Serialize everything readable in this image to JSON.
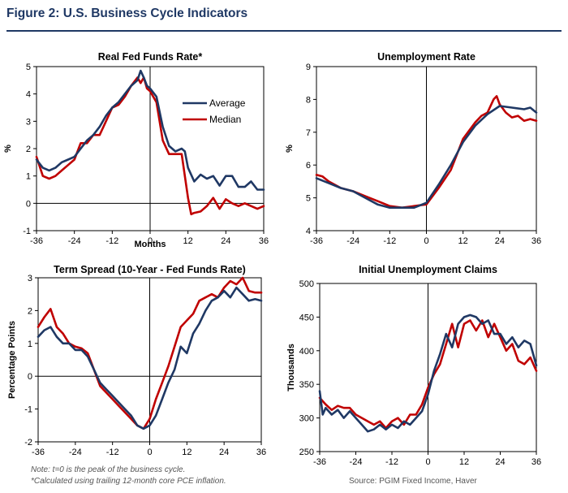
{
  "figure": {
    "title": "Figure 2: U.S. Business Cycle Indicators",
    "note1": "Note: t=0 is the peak of the business cycle.",
    "note2": "*Calculated using trailing 12-month core PCE inflation.",
    "source": "Source: PGIM Fixed Income, Haver",
    "colors": {
      "average": "#1f3864",
      "median": "#c00000",
      "title": "#1f3864"
    }
  },
  "chart_data": [
    {
      "type": "line",
      "title": "Real Fed Funds Rate*",
      "xlabel": "Months",
      "ylabel": "%",
      "xlim": [
        -36,
        36
      ],
      "ylim": [
        -1,
        5
      ],
      "xticks": [
        -36,
        -24,
        -12,
        0,
        12,
        24,
        36
      ],
      "yticks": [
        -1,
        0,
        1,
        2,
        3,
        4,
        5
      ],
      "legend": "top-right",
      "zero_line": true,
      "series": [
        {
          "name": "Average",
          "color": "#1f3864",
          "x": [
            -36,
            -34,
            -32,
            -30,
            -28,
            -26,
            -24,
            -22,
            -20,
            -18,
            -16,
            -14,
            -12,
            -10,
            -8,
            -6,
            -4,
            -3,
            -2,
            -1,
            0,
            2,
            4,
            6,
            8,
            10,
            11,
            12,
            14,
            16,
            18,
            20,
            22,
            24,
            26,
            28,
            30,
            32,
            34,
            36
          ],
          "y": [
            1.6,
            1.3,
            1.2,
            1.3,
            1.5,
            1.6,
            1.7,
            2.0,
            2.3,
            2.5,
            2.8,
            3.2,
            3.5,
            3.7,
            4.0,
            4.3,
            4.5,
            4.85,
            4.6,
            4.3,
            4.2,
            3.9,
            2.8,
            2.1,
            1.9,
            2.0,
            1.9,
            1.3,
            0.8,
            1.05,
            0.9,
            1.0,
            0.65,
            1.0,
            1.0,
            0.6,
            0.6,
            0.8,
            0.5,
            0.5
          ]
        },
        {
          "name": "Median",
          "color": "#c00000",
          "x": [
            -36,
            -34,
            -32,
            -30,
            -28,
            -26,
            -24,
            -22,
            -20,
            -18,
            -16,
            -14,
            -12,
            -10,
            -8,
            -6,
            -4,
            -3,
            -2,
            -1,
            0,
            2,
            4,
            6,
            8,
            10,
            12,
            13,
            14,
            16,
            18,
            20,
            22,
            24,
            26,
            28,
            30,
            32,
            34,
            36
          ],
          "y": [
            1.7,
            1.0,
            0.9,
            1.0,
            1.2,
            1.4,
            1.6,
            2.2,
            2.2,
            2.5,
            2.5,
            3.0,
            3.5,
            3.6,
            3.9,
            4.3,
            4.6,
            4.4,
            4.6,
            4.2,
            4.1,
            3.7,
            2.3,
            1.8,
            1.8,
            1.8,
            0.2,
            -0.4,
            -0.35,
            -0.3,
            -0.1,
            0.2,
            -0.2,
            0.15,
            0.0,
            -0.1,
            0.0,
            -0.1,
            -0.2,
            -0.1
          ]
        }
      ]
    },
    {
      "type": "line",
      "title": "Unemployment Rate",
      "xlabel": "",
      "ylabel": "%",
      "xlim": [
        -36,
        36
      ],
      "ylim": [
        4,
        9
      ],
      "xticks": [
        -36,
        -24,
        -12,
        0,
        12,
        24,
        36
      ],
      "yticks": [
        4,
        5,
        6,
        7,
        8,
        9
      ],
      "legend": "none",
      "zero_line": false,
      "series": [
        {
          "name": "Average",
          "color": "#1f3864",
          "x": [
            -36,
            -32,
            -28,
            -24,
            -20,
            -16,
            -12,
            -8,
            -4,
            0,
            4,
            8,
            12,
            16,
            20,
            24,
            28,
            32,
            34,
            36
          ],
          "y": [
            5.6,
            5.45,
            5.3,
            5.2,
            5.0,
            4.8,
            4.7,
            4.7,
            4.7,
            4.85,
            5.4,
            6.0,
            6.7,
            7.2,
            7.55,
            7.8,
            7.75,
            7.7,
            7.75,
            7.6
          ]
        },
        {
          "name": "Median",
          "color": "#c00000",
          "x": [
            -36,
            -34,
            -32,
            -28,
            -24,
            -20,
            -16,
            -12,
            -8,
            -4,
            0,
            4,
            8,
            12,
            16,
            18,
            20,
            22,
            23,
            24,
            26,
            28,
            30,
            32,
            34,
            36
          ],
          "y": [
            5.7,
            5.65,
            5.5,
            5.3,
            5.2,
            5.05,
            4.9,
            4.75,
            4.7,
            4.75,
            4.8,
            5.3,
            5.85,
            6.8,
            7.3,
            7.5,
            7.6,
            8.0,
            8.1,
            7.85,
            7.6,
            7.45,
            7.5,
            7.35,
            7.4,
            7.35
          ]
        }
      ]
    },
    {
      "type": "line",
      "title": "Term Spread (10-Year - Fed Funds Rate)",
      "xlabel": "",
      "ylabel": "Percentage Points",
      "xlim": [
        -36,
        36
      ],
      "ylim": [
        -2,
        3
      ],
      "xticks": [
        -36,
        -24,
        -12,
        0,
        12,
        24,
        36
      ],
      "yticks": [
        -2,
        -1,
        0,
        1,
        2,
        3
      ],
      "legend": "none",
      "zero_line": true,
      "series": [
        {
          "name": "Average",
          "color": "#1f3864",
          "x": [
            -36,
            -34,
            -32,
            -30,
            -28,
            -26,
            -24,
            -22,
            -20,
            -18,
            -16,
            -14,
            -12,
            -10,
            -8,
            -6,
            -4,
            -2,
            0,
            2,
            4,
            6,
            8,
            10,
            12,
            14,
            16,
            18,
            20,
            22,
            24,
            26,
            28,
            30,
            32,
            34,
            36
          ],
          "y": [
            1.2,
            1.4,
            1.5,
            1.2,
            1.0,
            1.0,
            0.8,
            0.8,
            0.6,
            0.2,
            -0.2,
            -0.4,
            -0.6,
            -0.8,
            -1.0,
            -1.2,
            -1.5,
            -1.6,
            -1.5,
            -1.2,
            -0.7,
            -0.2,
            0.2,
            0.9,
            0.7,
            1.3,
            1.6,
            2.0,
            2.3,
            2.4,
            2.6,
            2.4,
            2.7,
            2.5,
            2.3,
            2.35,
            2.3
          ]
        },
        {
          "name": "Median",
          "color": "#c00000",
          "x": [
            -36,
            -34,
            -32,
            -30,
            -28,
            -26,
            -24,
            -22,
            -20,
            -18,
            -16,
            -14,
            -12,
            -10,
            -8,
            -6,
            -4,
            -2,
            0,
            2,
            4,
            6,
            8,
            10,
            12,
            14,
            16,
            18,
            20,
            22,
            24,
            26,
            28,
            30,
            32,
            34,
            36
          ],
          "y": [
            1.5,
            1.8,
            2.05,
            1.5,
            1.3,
            1.0,
            0.9,
            0.85,
            0.7,
            0.2,
            -0.3,
            -0.5,
            -0.7,
            -0.9,
            -1.1,
            -1.3,
            -1.5,
            -1.6,
            -1.3,
            -0.7,
            -0.2,
            0.3,
            0.9,
            1.5,
            1.7,
            1.9,
            2.3,
            2.4,
            2.5,
            2.4,
            2.7,
            2.9,
            2.8,
            3.0,
            2.6,
            2.55,
            2.55
          ]
        }
      ]
    },
    {
      "type": "line",
      "title": "Initial Unemployment Claims",
      "xlabel": "",
      "ylabel": "Thousands",
      "xlim": [
        -36,
        36
      ],
      "ylim": [
        250,
        500
      ],
      "xticks": [
        -36,
        -24,
        -12,
        0,
        12,
        24,
        36
      ],
      "yticks": [
        250,
        300,
        350,
        400,
        450,
        500
      ],
      "legend": "none",
      "zero_line": false,
      "series": [
        {
          "name": "Average",
          "color": "#1f3864",
          "x": [
            -36,
            -35,
            -34,
            -32,
            -30,
            -28,
            -26,
            -24,
            -22,
            -20,
            -18,
            -16,
            -14,
            -12,
            -10,
            -8,
            -6,
            -4,
            -2,
            0,
            2,
            4,
            6,
            8,
            10,
            12,
            14,
            16,
            18,
            20,
            22,
            24,
            26,
            28,
            30,
            32,
            34,
            36
          ],
          "y": [
            340,
            305,
            315,
            305,
            312,
            300,
            310,
            300,
            290,
            280,
            283,
            290,
            283,
            290,
            285,
            295,
            290,
            300,
            310,
            335,
            370,
            395,
            425,
            405,
            440,
            450,
            453,
            450,
            440,
            445,
            425,
            425,
            410,
            420,
            405,
            415,
            410,
            378
          ]
        },
        {
          "name": "Median",
          "color": "#c00000",
          "x": [
            -36,
            -34,
            -32,
            -30,
            -28,
            -26,
            -24,
            -22,
            -20,
            -18,
            -16,
            -14,
            -12,
            -10,
            -8,
            -6,
            -4,
            -2,
            0,
            2,
            4,
            6,
            8,
            10,
            12,
            14,
            16,
            18,
            20,
            22,
            24,
            26,
            28,
            30,
            32,
            34,
            36
          ],
          "y": [
            330,
            320,
            312,
            318,
            315,
            315,
            305,
            300,
            295,
            290,
            295,
            285,
            295,
            300,
            290,
            305,
            305,
            320,
            345,
            365,
            380,
            410,
            440,
            405,
            440,
            445,
            430,
            445,
            420,
            440,
            420,
            400,
            410,
            385,
            380,
            390,
            370
          ]
        }
      ]
    }
  ]
}
